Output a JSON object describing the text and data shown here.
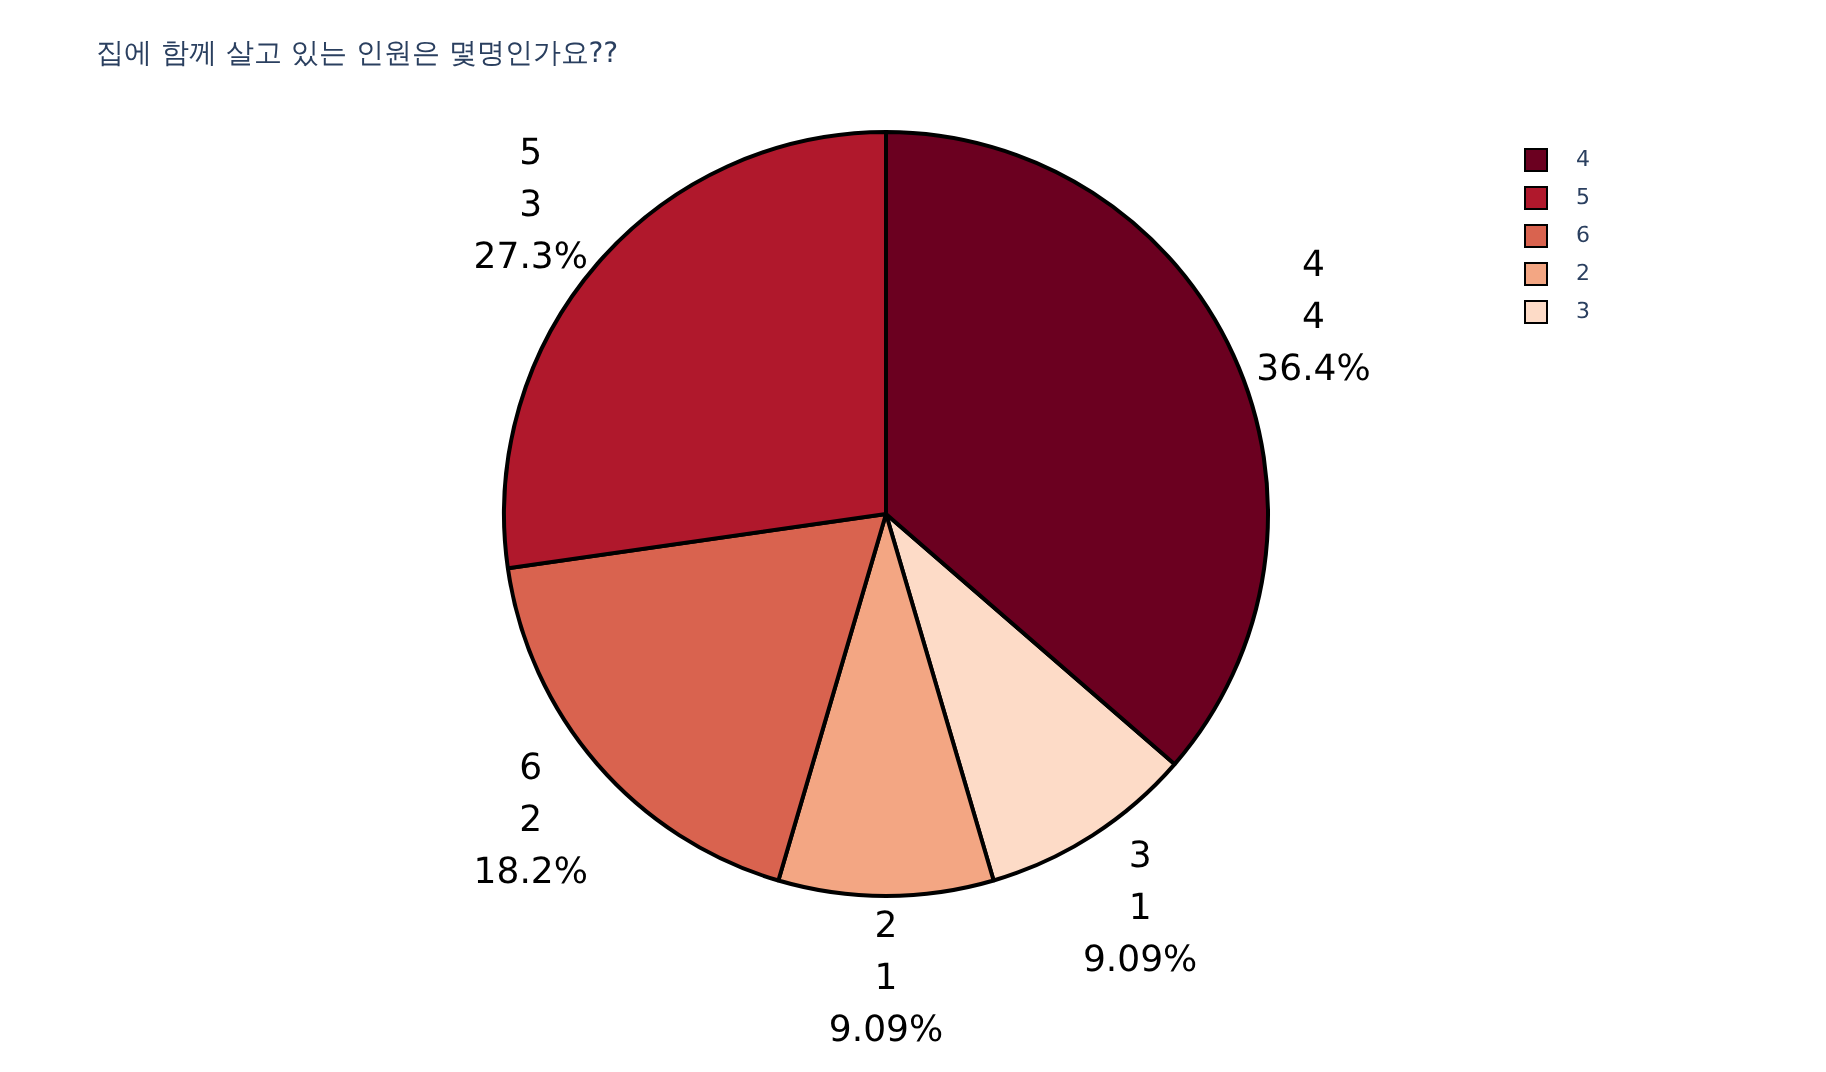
{
  "chart_data": {
    "type": "pie",
    "title": "집에 함께 살고 있는 인원은 몇명인가요??",
    "categories": [
      "4",
      "5",
      "6",
      "2",
      "3"
    ],
    "values": [
      4,
      3,
      2,
      1,
      1
    ],
    "colors": [
      "#6b0020",
      "#b0182c",
      "#d9634f",
      "#f3a683",
      "#fddbc7"
    ],
    "value_labels": [
      "4\n4\n36.4%",
      "5\n3\n27.3%",
      "6\n2\n18.2%",
      "2\n1\n9.09%",
      "3\n1\n9.09%"
    ],
    "data_labels": true,
    "legend": "top right"
  }
}
